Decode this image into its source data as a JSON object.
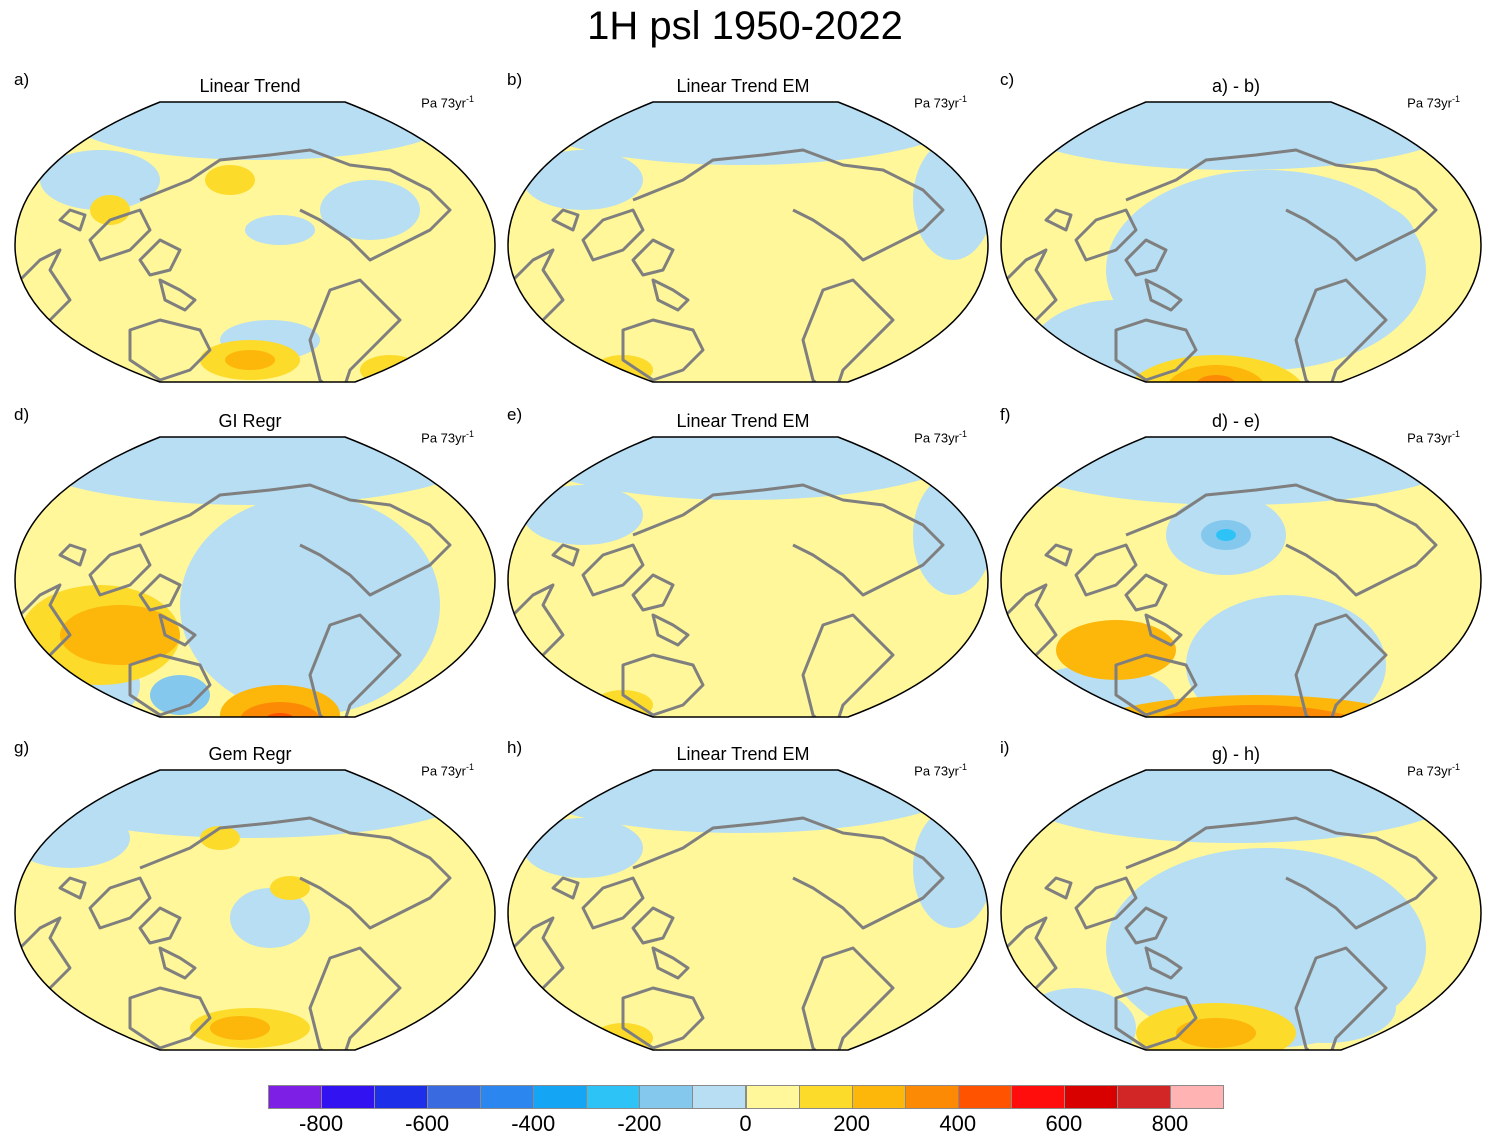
{
  "title": "1H psl 1950-2022",
  "units_base": "Pa 73yr",
  "units_exp": "-1",
  "panels": [
    {
      "letter": "a)",
      "title": "Linear Trend",
      "pattern": "trend"
    },
    {
      "letter": "b)",
      "title": "Linear Trend EM",
      "pattern": "em"
    },
    {
      "letter": "c)",
      "title": "a) - b)",
      "pattern": "diff1"
    },
    {
      "letter": "d)",
      "title": "GI Regr",
      "pattern": "gi"
    },
    {
      "letter": "e)",
      "title": "Linear Trend EM",
      "pattern": "em"
    },
    {
      "letter": "f)",
      "title": "d) - e)",
      "pattern": "diff2"
    },
    {
      "letter": "g)",
      "title": "Gem Regr",
      "pattern": "gem"
    },
    {
      "letter": "h)",
      "title": "Linear Trend EM",
      "pattern": "em"
    },
    {
      "letter": "i)",
      "title": "g) - h)",
      "pattern": "diff3"
    }
  ],
  "colorbar": {
    "colors": [
      "#7e1fe6",
      "#3312f2",
      "#1d2fe8",
      "#3a6ae0",
      "#2b86f0",
      "#14a6f5",
      "#2ec3f6",
      "#84c8ee",
      "#b7def2",
      "#fff79a",
      "#fddb2b",
      "#fdb60a",
      "#fd8a05",
      "#ff5300",
      "#ff0d0d",
      "#d90000",
      "#d22626",
      "#ffb3b3"
    ],
    "tick_labels": [
      "-800",
      "-600",
      "-400",
      "-200",
      "0",
      "200",
      "400",
      "600",
      "800"
    ]
  },
  "land_color": "#7f7f7f",
  "neutral_positive": "#fff79a",
  "neutral_negative": "#b7def2"
}
